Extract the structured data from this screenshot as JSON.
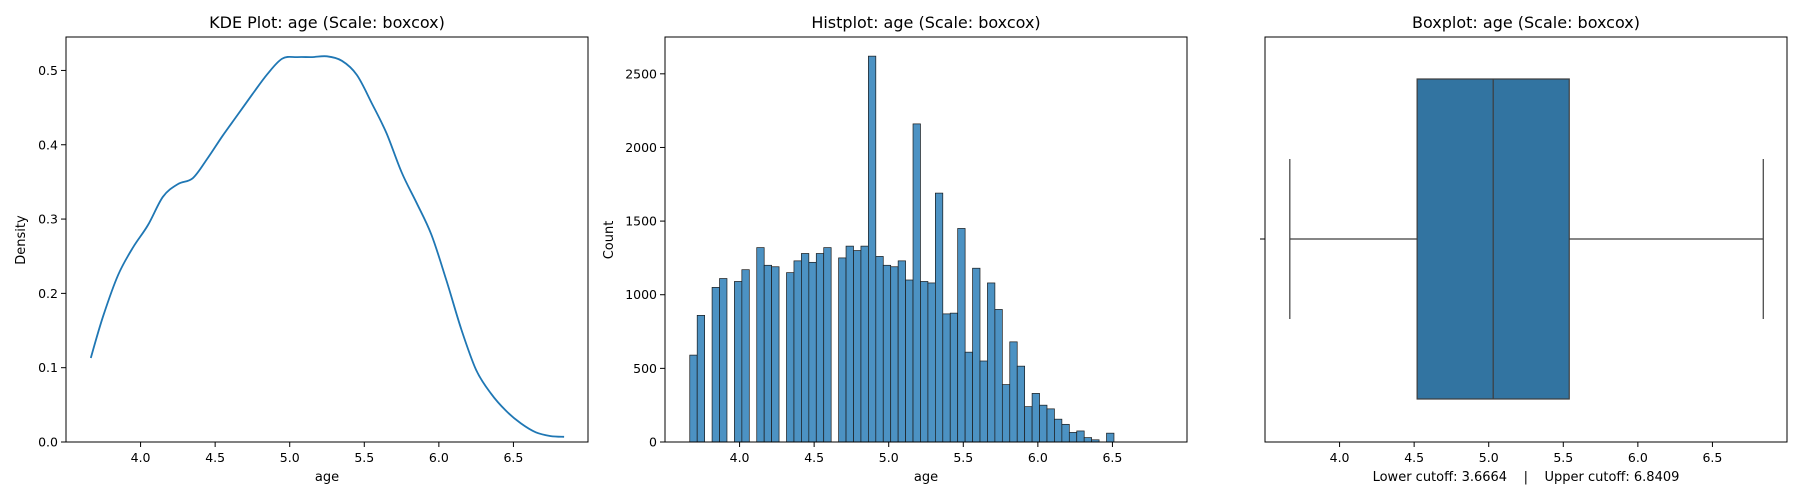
{
  "chart_data": [
    {
      "type": "line",
      "title": "KDE Plot: age (Scale: boxcox)",
      "xlabel": "age",
      "ylabel": "Density",
      "xlim": [
        3.5,
        7.0
      ],
      "ylim": [
        0,
        0.545
      ],
      "xticks": [
        "4.0",
        "4.5",
        "5.0",
        "5.5",
        "6.0",
        "6.5"
      ],
      "yticks": [
        "0.0",
        "0.1",
        "0.2",
        "0.3",
        "0.4",
        "0.5"
      ],
      "color": "#1f77b4",
      "x": [
        3.666,
        3.75,
        3.85,
        3.95,
        4.05,
        4.15,
        4.25,
        4.35,
        4.45,
        4.55,
        4.65,
        4.75,
        4.85,
        4.95,
        5.05,
        5.15,
        5.25,
        5.35,
        5.45,
        5.55,
        5.65,
        5.75,
        5.85,
        5.95,
        6.05,
        6.15,
        6.25,
        6.35,
        6.45,
        6.55,
        6.65,
        6.75,
        6.84
      ],
      "y": [
        0.113,
        0.17,
        0.225,
        0.262,
        0.292,
        0.33,
        0.347,
        0.355,
        0.382,
        0.412,
        0.44,
        0.468,
        0.495,
        0.516,
        0.518,
        0.518,
        0.519,
        0.513,
        0.494,
        0.456,
        0.415,
        0.363,
        0.322,
        0.279,
        0.218,
        0.152,
        0.097,
        0.065,
        0.042,
        0.025,
        0.013,
        0.008,
        0.007
      ]
    },
    {
      "type": "bar",
      "title": "Histplot: age (Scale: boxcox)",
      "xlabel": "age",
      "ylabel": "Count",
      "xlim": [
        3.5,
        7.0
      ],
      "ylim": [
        0,
        2750
      ],
      "xticks": [
        "4.0",
        "4.5",
        "5.0",
        "5.5",
        "6.0",
        "6.5"
      ],
      "yticks": [
        "0",
        "500",
        "1000",
        "1500",
        "2000",
        "2500"
      ],
      "color": "#4c92c3",
      "bin_start": 3.666,
      "bin_width": 0.0499,
      "values": [
        590,
        860,
        0,
        1050,
        1110,
        0,
        1090,
        1170,
        0,
        1320,
        1200,
        1190,
        0,
        1150,
        1230,
        1280,
        1220,
        1280,
        1320,
        0,
        1250,
        1330,
        1300,
        1330,
        2620,
        1260,
        1200,
        1190,
        1230,
        1100,
        2160,
        1090,
        1080,
        1690,
        870,
        875,
        1450,
        610,
        1180,
        550,
        1080,
        900,
        390,
        680,
        515,
        240,
        330,
        250,
        225,
        155,
        120,
        65,
        75,
        30,
        15,
        0,
        60
      ]
    },
    {
      "type": "box",
      "title": "Boxplot: age (Scale: boxcox)",
      "xlabel": "Lower cutoff: 3.6664    |    Upper cutoff: 6.8409",
      "xlim": [
        3.5,
        7.0
      ],
      "xticks": [
        "4.0",
        "4.5",
        "5.0",
        "5.5",
        "6.0",
        "6.5"
      ],
      "color": "#3274a1",
      "whisker_low": 3.6664,
      "q1": 4.52,
      "median": 5.03,
      "q3": 5.54,
      "whisker_high": 6.8409
    }
  ]
}
